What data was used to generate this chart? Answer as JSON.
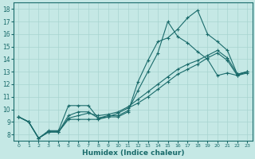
{
  "xlabel": "Humidex (Indice chaleur)",
  "xlim": [
    -0.5,
    23.5
  ],
  "ylim": [
    7.5,
    18.5
  ],
  "xticks": [
    0,
    1,
    2,
    3,
    4,
    5,
    6,
    7,
    8,
    9,
    10,
    11,
    12,
    13,
    14,
    15,
    16,
    17,
    18,
    19,
    20,
    21,
    22,
    23
  ],
  "yticks": [
    8,
    9,
    10,
    11,
    12,
    13,
    14,
    15,
    16,
    17,
    18
  ],
  "bg_color": "#c5e8e5",
  "grid_color": "#a8d4d0",
  "line_color": "#1a6b6b",
  "lines": [
    {
      "x": [
        0,
        1,
        2,
        3,
        4,
        5,
        6,
        7,
        8,
        9,
        10,
        11,
        12,
        13,
        14,
        15,
        16,
        17,
        18,
        19,
        20,
        21,
        22,
        23
      ],
      "y": [
        9.4,
        9.0,
        7.7,
        8.3,
        8.3,
        10.3,
        10.3,
        10.3,
        9.3,
        9.4,
        9.4,
        9.8,
        12.2,
        13.9,
        15.4,
        15.7,
        16.4,
        17.3,
        17.9,
        16.0,
        15.4,
        14.7,
        12.8,
        13.0
      ]
    },
    {
      "x": [
        0,
        1,
        2,
        3,
        4,
        5,
        6,
        7,
        8,
        9,
        10,
        11,
        12,
        13,
        14,
        15,
        16,
        17,
        18,
        19,
        20,
        21,
        22,
        23
      ],
      "y": [
        9.4,
        9.0,
        7.7,
        8.2,
        8.2,
        9.5,
        9.8,
        9.8,
        9.3,
        9.5,
        9.5,
        9.9,
        11.5,
        13.0,
        14.5,
        17.0,
        15.8,
        15.3,
        14.6,
        14.0,
        12.7,
        12.9,
        12.7,
        12.9
      ]
    },
    {
      "x": [
        0,
        1,
        2,
        3,
        4,
        5,
        6,
        7,
        8,
        9,
        10,
        11,
        12,
        13,
        14,
        15,
        16,
        17,
        18,
        19,
        20,
        21,
        22,
        23
      ],
      "y": [
        9.4,
        9.0,
        7.7,
        8.2,
        8.2,
        9.3,
        9.5,
        9.7,
        9.5,
        9.6,
        9.8,
        10.2,
        10.8,
        11.4,
        12.0,
        12.6,
        13.2,
        13.6,
        13.9,
        14.3,
        14.7,
        14.1,
        12.8,
        13.0
      ]
    },
    {
      "x": [
        0,
        1,
        2,
        3,
        4,
        5,
        6,
        7,
        8,
        9,
        10,
        11,
        12,
        13,
        14,
        15,
        16,
        17,
        18,
        19,
        20,
        21,
        22,
        23
      ],
      "y": [
        9.4,
        9.0,
        7.7,
        8.2,
        8.2,
        9.2,
        9.2,
        9.2,
        9.2,
        9.4,
        9.7,
        10.1,
        10.5,
        11.0,
        11.6,
        12.2,
        12.8,
        13.2,
        13.6,
        14.1,
        14.5,
        13.9,
        12.7,
        13.0
      ]
    }
  ]
}
